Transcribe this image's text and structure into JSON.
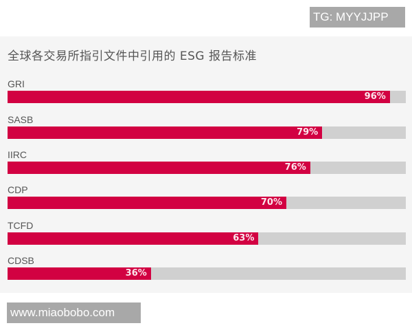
{
  "watermark_top": "TG: MYYJJPP",
  "watermark_bottom": "www.miaobobo.com",
  "chart_data": {
    "type": "bar",
    "orientation": "horizontal",
    "title": "全球各交易所指引文件中引用的 ESG 报告标准",
    "categories": [
      "GRI",
      "SASB",
      "IIRC",
      "CDP",
      "TCFD",
      "CDSB"
    ],
    "values": [
      96,
      79,
      76,
      70,
      63,
      36
    ],
    "labels": [
      "96%",
      "79%",
      "76%",
      "70%",
      "63%",
      "36%"
    ],
    "xlabel": "",
    "ylabel": "",
    "xlim": [
      0,
      100
    ],
    "unit": "%",
    "grid": false,
    "legend": null,
    "colors": {
      "bar": "#d20142",
      "track": "#d0d0d0",
      "background": "#f5f5f5"
    }
  }
}
